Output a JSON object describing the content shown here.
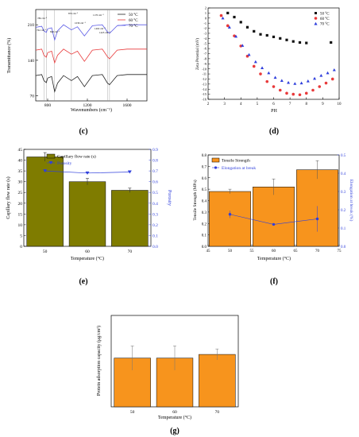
{
  "panels": {
    "c": {
      "label": "(c)",
      "xlabel": "Wavenumbers (cm⁻¹)",
      "ylabel": "Transmittance (%)",
      "annotations": [
        "786 cm⁻¹",
        "762 cm⁻¹",
        "870 cm⁻¹",
        "840 cm⁻¹",
        "1039 cm⁻¹",
        "1170 cm⁻¹",
        "1402 cm⁻¹",
        "1423 cm⁻¹"
      ],
      "legend": [
        "50 °C",
        "60 °C",
        "70 °C"
      ]
    },
    "d": {
      "label": "(d)",
      "xlabel": "PH",
      "ylabel": "Zeta Potential (mV)",
      "legend": [
        "50 °C",
        "60 °C",
        "70 °C"
      ]
    },
    "e": {
      "label": "(e)",
      "xlabel": "Temperature (°C)",
      "ylabel": "Capillary flow rate (s)",
      "y2label": "Porosity",
      "legend": [
        "Capillary flow rate (s)",
        "Porosity"
      ]
    },
    "f": {
      "label": "(f)",
      "xlabel": "Temperature (°C)",
      "ylabel": "Tensile Strength (MPa)",
      "y2label": "Elongation at break (%)",
      "legend": [
        "Tensile Strength",
        "Elongation at break"
      ]
    },
    "g": {
      "label": "(g)",
      "xlabel": "Temperature (°C)",
      "ylabel": "Protein adsorption capacity (μg/cm²)"
    }
  },
  "chart_data": [
    {
      "id": "c",
      "type": "line",
      "x_ticks": [
        800,
        1200,
        1600
      ],
      "y_ticks": [
        70,
        140,
        210
      ],
      "xlim": [
        680,
        1800
      ],
      "ylim": [
        60,
        240
      ],
      "series": [
        {
          "name": "50 °C",
          "color": "#222222",
          "x": [
            680,
            740,
            762,
            786,
            800,
            840,
            870,
            900,
            960,
            1039,
            1100,
            1170,
            1250,
            1350,
            1402,
            1423,
            1500,
            1600,
            1800
          ],
          "y": [
            110,
            112,
            100,
            96,
            105,
            108,
            78,
            95,
            110,
            100,
            108,
            88,
            110,
            112,
            95,
            92,
            110,
            112,
            112
          ]
        },
        {
          "name": "60 °C",
          "color": "#e8393a",
          "x": [
            680,
            740,
            762,
            786,
            800,
            840,
            870,
            900,
            960,
            1039,
            1100,
            1170,
            1250,
            1350,
            1402,
            1423,
            1500,
            1600,
            1800
          ],
          "y": [
            160,
            162,
            150,
            146,
            155,
            158,
            135,
            150,
            162,
            152,
            158,
            138,
            160,
            162,
            147,
            143,
            160,
            162,
            162
          ]
        },
        {
          "name": "70 °C",
          "color": "#5a5ae6",
          "x": [
            680,
            740,
            762,
            786,
            800,
            840,
            870,
            900,
            960,
            1039,
            1100,
            1170,
            1250,
            1350,
            1402,
            1423,
            1500,
            1600,
            1800
          ],
          "y": [
            205,
            207,
            198,
            195,
            202,
            204,
            180,
            198,
            210,
            200,
            206,
            188,
            208,
            210,
            196,
            193,
            208,
            210,
            210
          ]
        }
      ]
    },
    {
      "id": "d",
      "type": "scatter",
      "x_ticks": [
        2,
        3,
        4,
        5,
        6,
        7,
        8,
        9,
        10
      ],
      "y_ticks": [
        2,
        1,
        0,
        -1,
        -2,
        -3,
        -4,
        -5,
        -6,
        -7,
        -8,
        -9,
        -10,
        -11,
        -12,
        -13,
        -14,
        -15,
        -16
      ],
      "xlim": [
        2,
        10
      ],
      "ylim": [
        -16,
        2
      ],
      "series": [
        {
          "name": "50 °C",
          "color": "#111111",
          "marker": "square",
          "x": [
            3.2,
            3.6,
            4.0,
            4.4,
            4.8,
            5.2,
            5.6,
            6.0,
            6.4,
            6.8,
            7.2,
            7.6,
            8.0,
            9.5
          ],
          "y": [
            1.0,
            0.2,
            -0.8,
            -1.8,
            -2.6,
            -3.2,
            -3.4,
            -3.7,
            -4.0,
            -4.3,
            -4.6,
            -4.8,
            -4.9,
            -4.8
          ]
        },
        {
          "name": "60 °C",
          "color": "#e8393a",
          "marker": "circle",
          "x": [
            2.8,
            3.2,
            3.6,
            4.0,
            4.4,
            4.8,
            5.2,
            5.6,
            6.0,
            6.4,
            6.8,
            7.2,
            7.6,
            8.0,
            8.4,
            8.8,
            9.2,
            9.6
          ],
          "y": [
            0.5,
            -1.5,
            -3.5,
            -5.5,
            -7.5,
            -9.5,
            -11.0,
            -12.5,
            -13.5,
            -14.2,
            -14.8,
            -15.0,
            -15.1,
            -14.8,
            -14.2,
            -13.5,
            -12.8,
            -12.0
          ]
        },
        {
          "name": "70 °C",
          "color": "#2f3fdc",
          "marker": "triangle",
          "x": [
            2.9,
            3.3,
            3.7,
            4.1,
            4.5,
            4.9,
            5.3,
            5.7,
            6.1,
            6.5,
            6.9,
            7.3,
            7.7,
            8.1,
            8.5,
            8.9,
            9.3,
            9.7
          ],
          "y": [
            0.0,
            -1.8,
            -3.6,
            -5.4,
            -7.2,
            -8.6,
            -9.8,
            -10.8,
            -11.7,
            -12.3,
            -12.7,
            -12.9,
            -12.8,
            -12.4,
            -11.9,
            -11.3,
            -10.8,
            -10.2
          ]
        }
      ]
    },
    {
      "id": "e",
      "type": "bar",
      "categories": [
        "50",
        "60",
        "70"
      ],
      "y_ticks": [
        0,
        5,
        10,
        15,
        20,
        25,
        30,
        35,
        40,
        45
      ],
      "ylim": [
        0,
        45
      ],
      "y2_ticks": [
        0.0,
        0.1,
        0.2,
        0.3,
        0.4,
        0.5,
        0.6,
        0.7,
        0.8,
        0.9
      ],
      "y2lim": [
        0,
        0.9
      ],
      "series": [
        {
          "name": "Capillary flow rate (s)",
          "color": "#7f7c00",
          "values": [
            41.5,
            30.0,
            26.0
          ],
          "errors": [
            2.0,
            1.5,
            1.0
          ]
        },
        {
          "name": "Porosity",
          "color": "#2f3fdc",
          "axis": "right",
          "values": [
            0.7,
            0.68,
            0.69
          ],
          "errors": [
            0.02,
            0.02,
            0.02
          ]
        }
      ]
    },
    {
      "id": "f",
      "type": "bar",
      "categories": [
        "50",
        "60",
        "70"
      ],
      "x_ticks": [
        45,
        50,
        55,
        60,
        65,
        70,
        75
      ],
      "xlim": [
        45,
        75
      ],
      "y_ticks": [
        0.0,
        0.1,
        0.2,
        0.3,
        0.4,
        0.5,
        0.6,
        0.7,
        0.8
      ],
      "ylim": [
        0,
        0.8
      ],
      "y2_ticks": [
        0.0,
        0.1,
        0.2,
        0.3,
        0.4,
        0.5
      ],
      "y2lim": [
        0,
        0.5
      ],
      "series": [
        {
          "name": "Tensile Strength",
          "color": "#f7941d",
          "x": [
            50,
            60,
            70
          ],
          "values": [
            0.48,
            0.52,
            0.67
          ],
          "errors": [
            0.02,
            0.07,
            0.08
          ]
        },
        {
          "name": "Elongation at break",
          "color": "#2f3fdc",
          "axis": "right",
          "x": [
            50,
            60,
            70
          ],
          "values": [
            0.175,
            0.12,
            0.15
          ],
          "errors": [
            0.02,
            0.0,
            0.07
          ]
        }
      ]
    },
    {
      "id": "g",
      "type": "bar",
      "categories": [
        "50",
        "60",
        "70"
      ],
      "ylim": [
        0,
        30
      ],
      "series": [
        {
          "name": "",
          "color": "#f7941d",
          "values": [
            16.0,
            16.0,
            17.2
          ],
          "errors": [
            4.0,
            4.0,
            1.8
          ]
        }
      ]
    }
  ]
}
